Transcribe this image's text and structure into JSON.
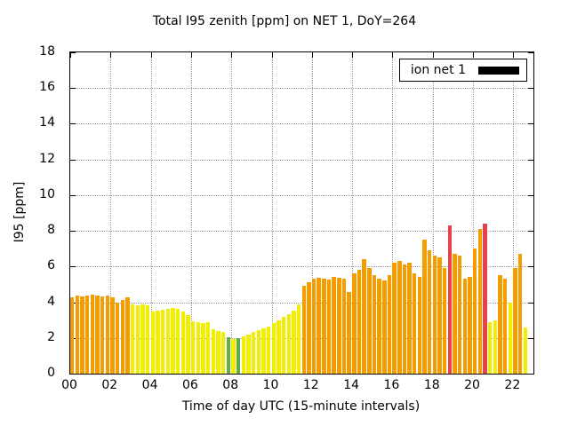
{
  "title": "Total I95 zenith [ppm] on NET 1, DoY=264",
  "legend": {
    "label": "ion net 1",
    "swatch_color": "#000000"
  },
  "axes": {
    "ylabel": "I95 [ppm]",
    "xlabel": "Time of day UTC (15-minute intervals)"
  },
  "chart_data": {
    "type": "bar",
    "title": "Total I95 zenith [ppm] on NET 1, DoY=264",
    "ylabel": "I95 [ppm]",
    "xlabel": "Time of day UTC (15-minute intervals)",
    "series_name": "ion net 1",
    "ylim": [
      0,
      18
    ],
    "x_hours_range": [
      0,
      23
    ],
    "yticks": [
      0,
      2,
      4,
      6,
      8,
      10,
      12,
      14,
      16,
      18
    ],
    "xticks_hours": [
      0,
      2,
      4,
      6,
      8,
      10,
      12,
      14,
      16,
      18,
      20,
      22
    ],
    "xtick_labels": [
      "00",
      "02",
      "04",
      "06",
      "08",
      "10",
      "12",
      "14",
      "16",
      "18",
      "20",
      "22"
    ],
    "interval_minutes": 15,
    "grid": true,
    "legend_position": "top-right",
    "times": [
      "00:00",
      "00:15",
      "00:30",
      "00:45",
      "01:00",
      "01:15",
      "01:30",
      "01:45",
      "02:00",
      "02:15",
      "02:30",
      "02:45",
      "03:00",
      "03:15",
      "03:30",
      "03:45",
      "04:00",
      "04:15",
      "04:30",
      "04:45",
      "05:00",
      "05:15",
      "05:30",
      "05:45",
      "06:00",
      "06:15",
      "06:30",
      "06:45",
      "07:00",
      "07:15",
      "07:30",
      "07:45",
      "08:00",
      "08:15",
      "08:30",
      "08:45",
      "09:00",
      "09:15",
      "09:30",
      "09:45",
      "10:00",
      "10:15",
      "10:30",
      "10:45",
      "11:00",
      "11:15",
      "11:30",
      "11:45",
      "12:00",
      "12:15",
      "12:30",
      "12:45",
      "13:00",
      "13:15",
      "13:30",
      "13:45",
      "14:00",
      "14:15",
      "14:30",
      "14:45",
      "15:00",
      "15:15",
      "15:30",
      "15:45",
      "16:00",
      "16:15",
      "16:30",
      "16:45",
      "17:00",
      "17:15",
      "17:30",
      "17:45",
      "18:00",
      "18:15",
      "18:30",
      "18:45",
      "19:00",
      "19:15",
      "19:30",
      "19:45",
      "20:00",
      "20:15",
      "20:30",
      "20:45",
      "21:00",
      "21:15",
      "21:30",
      "21:45",
      "22:00",
      "22:15",
      "22:30"
    ],
    "values": [
      4.3,
      4.4,
      4.35,
      4.4,
      4.45,
      4.4,
      4.35,
      4.4,
      4.3,
      4.0,
      4.15,
      4.3,
      3.9,
      3.85,
      3.9,
      3.85,
      3.5,
      3.55,
      3.6,
      3.65,
      3.7,
      3.65,
      3.5,
      3.3,
      2.95,
      2.9,
      2.85,
      2.9,
      2.5,
      2.4,
      2.35,
      2.05,
      1.95,
      2.0,
      2.1,
      2.2,
      2.35,
      2.45,
      2.55,
      2.65,
      2.85,
      3.0,
      3.2,
      3.35,
      3.55,
      3.9,
      4.9,
      5.1,
      5.3,
      5.35,
      5.3,
      5.25,
      5.4,
      5.35,
      5.3,
      4.6,
      5.6,
      5.8,
      6.4,
      5.9,
      5.5,
      5.3,
      5.2,
      5.5,
      6.2,
      6.3,
      6.1,
      6.2,
      5.6,
      5.4,
      7.5,
      6.9,
      6.6,
      6.5,
      5.9,
      8.3,
      6.7,
      6.6,
      5.3,
      5.4,
      7.0,
      8.1,
      8.4,
      2.9,
      3.0,
      5.5,
      5.3,
      4.0,
      5.9,
      6.7,
      2.6
    ],
    "colors": [
      "o",
      "o",
      "o",
      "o",
      "o",
      "o",
      "o",
      "o",
      "o",
      "o",
      "o",
      "o",
      "y",
      "y",
      "y",
      "y",
      "y",
      "y",
      "y",
      "y",
      "y",
      "y",
      "y",
      "y",
      "y",
      "y",
      "y",
      "y",
      "y",
      "y",
      "y",
      "g",
      "y",
      "g",
      "y",
      "y",
      "y",
      "y",
      "y",
      "y",
      "y",
      "y",
      "y",
      "y",
      "y",
      "y",
      "o",
      "o",
      "o",
      "o",
      "o",
      "o",
      "o",
      "o",
      "o",
      "o",
      "o",
      "o",
      "o",
      "o",
      "o",
      "o",
      "o",
      "o",
      "o",
      "o",
      "o",
      "o",
      "o",
      "o",
      "o",
      "o",
      "o",
      "o",
      "o",
      "r",
      "o",
      "o",
      "o",
      "o",
      "o",
      "o",
      "r",
      "y",
      "y",
      "o",
      "o",
      "y",
      "o",
      "o",
      "y"
    ],
    "color_map": {
      "o": "#f49d00",
      "y": "#f2ee00",
      "g": "#5fae4a",
      "r": "#e8414b"
    }
  }
}
